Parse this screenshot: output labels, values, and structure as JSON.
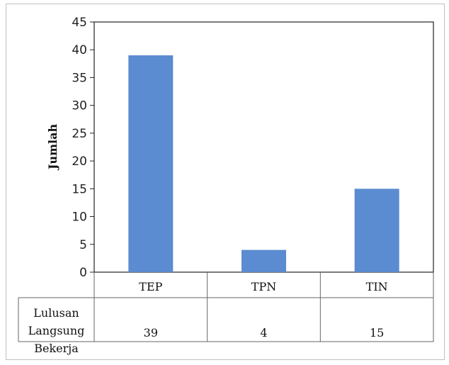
{
  "chart_data": {
    "type": "bar",
    "categories": [
      "TEP",
      "TPN",
      "TIN"
    ],
    "series": [
      {
        "name": "Lulusan Langsung Bekerja",
        "values": [
          39,
          4,
          15
        ]
      }
    ],
    "ylabel": "Jumlah",
    "xlabel": "",
    "ylim": [
      0,
      45
    ],
    "yticks": [
      0,
      5,
      10,
      15,
      20,
      25,
      30,
      35,
      40,
      45
    ],
    "grid": false,
    "legend": "data table below plot",
    "bar_color": "#5b8bd0",
    "data_table": {
      "row_label": [
        "Lulusan",
        "Langsung",
        "Bekerja"
      ],
      "values": [
        "39",
        "4",
        "15"
      ]
    }
  }
}
